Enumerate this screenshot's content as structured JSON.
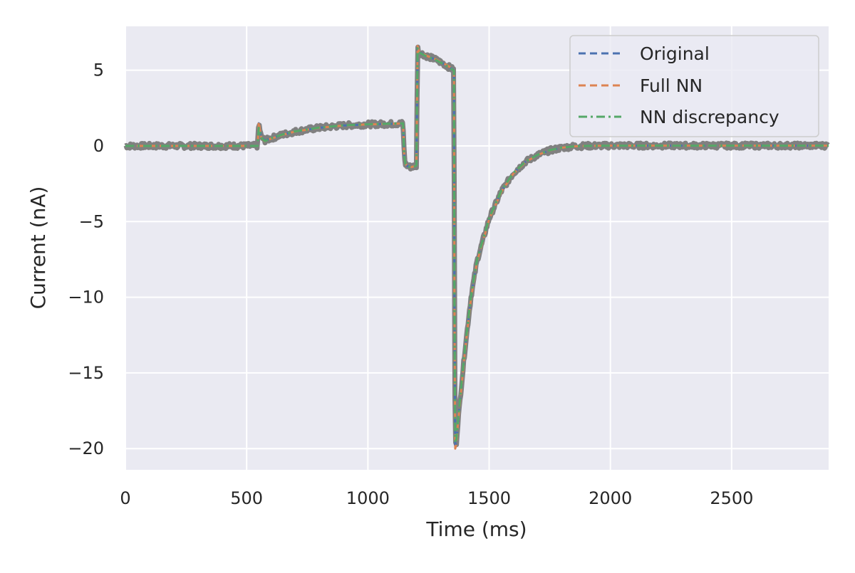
{
  "chart_data": {
    "type": "line",
    "title": "",
    "xlabel": "Time (ms)",
    "ylabel": "Current (nA)",
    "xlim": [
      0,
      2900
    ],
    "ylim": [
      -21.4,
      7.9
    ],
    "grid": true,
    "legend_placement": "top-right",
    "x_ticks": [
      0,
      500,
      1000,
      1500,
      2000,
      2500
    ],
    "x_tick_labels": [
      "0",
      "500",
      "1000",
      "1500",
      "2000",
      "2500"
    ],
    "y_ticks": [
      5,
      0,
      -5,
      -10,
      -15,
      -20
    ],
    "y_tick_labels": [
      "5",
      "0",
      "−5",
      "−10",
      "−15",
      "−20"
    ],
    "background_color": "#eaeaf2",
    "raw_trace_color": "#808080",
    "series": [
      {
        "name": "Original",
        "style": "dashed",
        "color": "#4c72b0",
        "x": [
          0,
          545,
          550,
          560,
          575,
          600,
          650,
          700,
          800,
          900,
          1000,
          1100,
          1145,
          1148,
          1150,
          1155,
          1165,
          1180,
          1200,
          1205,
          1210,
          1240,
          1280,
          1320,
          1355,
          1357,
          1360,
          1365,
          1370,
          1380,
          1400,
          1425,
          1450,
          1500,
          1550,
          1600,
          1650,
          1700,
          1750,
          1800,
          1850,
          1900,
          2000,
          2500,
          2900
        ],
        "y": [
          0,
          0,
          1.5,
          0.6,
          0.35,
          0.5,
          0.75,
          0.95,
          1.2,
          1.35,
          1.42,
          1.46,
          1.48,
          0.2,
          -0.7,
          -1.2,
          -1.35,
          -1.4,
          -1.3,
          6.5,
          6.2,
          5.95,
          5.7,
          5.35,
          5.0,
          -10,
          -19.8,
          -19.6,
          -18.5,
          -16.8,
          -13.5,
          -10.0,
          -7.6,
          -4.8,
          -3.0,
          -1.8,
          -1.05,
          -0.6,
          -0.3,
          -0.12,
          -0.03,
          0.0,
          0.02,
          0.02,
          0.02
        ]
      },
      {
        "name": "Full NN",
        "style": "dashed",
        "color": "#dd8452",
        "x": [
          0,
          545,
          550,
          560,
          575,
          600,
          650,
          700,
          800,
          900,
          1000,
          1100,
          1145,
          1148,
          1150,
          1155,
          1165,
          1180,
          1200,
          1205,
          1210,
          1240,
          1280,
          1320,
          1355,
          1357,
          1360,
          1365,
          1370,
          1380,
          1400,
          1425,
          1450,
          1500,
          1550,
          1600,
          1650,
          1700,
          1750,
          1800,
          1850,
          1900,
          2000,
          2500,
          2900
        ],
        "y": [
          0,
          0,
          1.6,
          0.55,
          0.3,
          0.48,
          0.74,
          0.95,
          1.2,
          1.35,
          1.42,
          1.46,
          1.48,
          0.2,
          -0.7,
          -1.2,
          -1.35,
          -1.4,
          -1.3,
          6.6,
          6.25,
          5.97,
          5.72,
          5.38,
          5.05,
          -10,
          -20.0,
          -19.7,
          -18.6,
          -16.9,
          -13.6,
          -10.1,
          -7.65,
          -4.85,
          -3.05,
          -1.82,
          -1.07,
          -0.6,
          -0.3,
          -0.12,
          -0.03,
          0.0,
          0.02,
          0.02,
          0.02
        ]
      },
      {
        "name": "NN discrepancy",
        "style": "dashdot",
        "color": "#55a868",
        "x": [
          0,
          545,
          550,
          560,
          575,
          600,
          650,
          700,
          800,
          900,
          1000,
          1100,
          1145,
          1148,
          1150,
          1155,
          1165,
          1180,
          1200,
          1205,
          1210,
          1240,
          1280,
          1320,
          1355,
          1357,
          1360,
          1365,
          1370,
          1380,
          1400,
          1425,
          1450,
          1500,
          1550,
          1600,
          1650,
          1700,
          1750,
          1800,
          1850,
          1900,
          2000,
          2500,
          2900
        ],
        "y": [
          0,
          0,
          1.2,
          0.55,
          0.32,
          0.5,
          0.76,
          0.96,
          1.21,
          1.36,
          1.43,
          1.47,
          1.49,
          0.2,
          -0.7,
          -1.2,
          -1.36,
          -1.42,
          -1.3,
          6.45,
          6.18,
          5.93,
          5.68,
          5.33,
          4.98,
          -10,
          -19.5,
          -19.4,
          -18.4,
          -16.7,
          -13.4,
          -9.95,
          -7.55,
          -4.78,
          -2.98,
          -1.78,
          -1.04,
          -0.59,
          -0.29,
          -0.11,
          -0.03,
          0.0,
          0.02,
          0.02,
          0.02
        ]
      }
    ]
  }
}
